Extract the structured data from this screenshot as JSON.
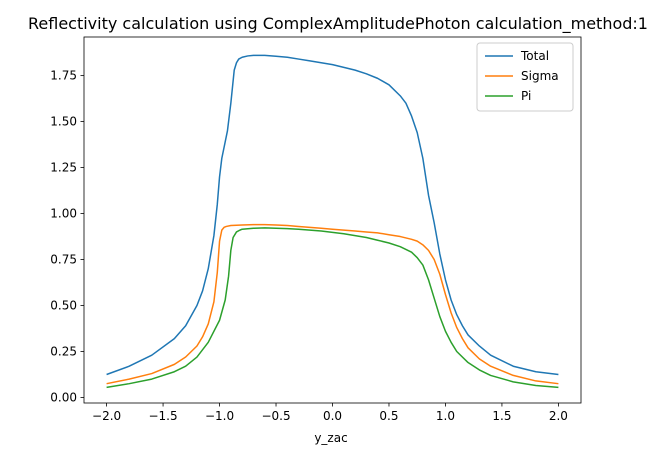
{
  "chart_data": {
    "type": "line",
    "title": "Reflectivity calculation using ComplexAmplitudePhoton calculation_method:1",
    "xlabel": "y_zac",
    "ylabel": "",
    "xlim": [
      -2.2,
      2.2
    ],
    "ylim": [
      -0.03,
      1.96
    ],
    "xticks": [
      -2.0,
      -1.5,
      -1.0,
      -0.5,
      0.0,
      0.5,
      1.0,
      1.5,
      2.0
    ],
    "xtick_labels": [
      "−2.0",
      "−1.5",
      "−1.0",
      "−0.5",
      "0.0",
      "0.5",
      "1.0",
      "1.5",
      "2.0"
    ],
    "yticks": [
      0.0,
      0.25,
      0.5,
      0.75,
      1.0,
      1.25,
      1.5,
      1.75
    ],
    "ytick_labels": [
      "0.00",
      "0.25",
      "0.50",
      "0.75",
      "1.00",
      "1.25",
      "1.50",
      "1.75"
    ],
    "grid": false,
    "legend_position": "top-right",
    "series": [
      {
        "name": "Total",
        "color": "#1f77b4",
        "x": [
          -2.0,
          -1.8,
          -1.6,
          -1.4,
          -1.3,
          -1.2,
          -1.15,
          -1.1,
          -1.05,
          -1.02,
          -1.0,
          -0.98,
          -0.96,
          -0.93,
          -0.9,
          -0.87,
          -0.85,
          -0.83,
          -0.8,
          -0.75,
          -0.7,
          -0.6,
          -0.5,
          -0.4,
          -0.3,
          -0.2,
          -0.1,
          0.0,
          0.1,
          0.2,
          0.3,
          0.4,
          0.5,
          0.6,
          0.65,
          0.7,
          0.75,
          0.8,
          0.85,
          0.9,
          0.95,
          1.0,
          1.05,
          1.1,
          1.15,
          1.2,
          1.3,
          1.4,
          1.6,
          1.8,
          2.0
        ],
        "y": [
          0.125,
          0.17,
          0.23,
          0.32,
          0.39,
          0.5,
          0.58,
          0.7,
          0.88,
          1.05,
          1.2,
          1.3,
          1.36,
          1.45,
          1.6,
          1.78,
          1.82,
          1.84,
          1.85,
          1.857,
          1.86,
          1.86,
          1.855,
          1.85,
          1.84,
          1.83,
          1.82,
          1.81,
          1.795,
          1.78,
          1.76,
          1.735,
          1.7,
          1.64,
          1.6,
          1.53,
          1.44,
          1.3,
          1.1,
          0.95,
          0.78,
          0.64,
          0.53,
          0.45,
          0.39,
          0.34,
          0.28,
          0.23,
          0.17,
          0.14,
          0.125
        ]
      },
      {
        "name": "Sigma",
        "color": "#ff7f0e",
        "x": [
          -2.0,
          -1.8,
          -1.6,
          -1.4,
          -1.3,
          -1.2,
          -1.15,
          -1.1,
          -1.05,
          -1.02,
          -1.0,
          -0.98,
          -0.96,
          -0.94,
          -0.9,
          -0.8,
          -0.7,
          -0.6,
          -0.5,
          -0.4,
          -0.3,
          -0.2,
          -0.1,
          0.0,
          0.1,
          0.2,
          0.3,
          0.4,
          0.5,
          0.6,
          0.7,
          0.75,
          0.8,
          0.85,
          0.9,
          0.95,
          1.0,
          1.05,
          1.1,
          1.15,
          1.2,
          1.3,
          1.4,
          1.6,
          1.8,
          2.0
        ],
        "y": [
          0.075,
          0.1,
          0.13,
          0.18,
          0.22,
          0.28,
          0.33,
          0.4,
          0.52,
          0.68,
          0.85,
          0.91,
          0.925,
          0.93,
          0.935,
          0.938,
          0.94,
          0.94,
          0.938,
          0.935,
          0.93,
          0.925,
          0.92,
          0.915,
          0.91,
          0.905,
          0.9,
          0.895,
          0.885,
          0.875,
          0.86,
          0.85,
          0.83,
          0.8,
          0.75,
          0.67,
          0.56,
          0.46,
          0.38,
          0.32,
          0.27,
          0.21,
          0.17,
          0.12,
          0.09,
          0.075
        ]
      },
      {
        "name": "Pi",
        "color": "#2ca02c",
        "x": [
          -2.0,
          -1.8,
          -1.6,
          -1.4,
          -1.3,
          -1.2,
          -1.1,
          -1.0,
          -0.95,
          -0.92,
          -0.9,
          -0.88,
          -0.85,
          -0.82,
          -0.8,
          -0.7,
          -0.6,
          -0.5,
          -0.4,
          -0.3,
          -0.2,
          -0.1,
          0.0,
          0.1,
          0.2,
          0.3,
          0.4,
          0.5,
          0.6,
          0.7,
          0.75,
          0.8,
          0.85,
          0.9,
          0.95,
          1.0,
          1.05,
          1.1,
          1.2,
          1.3,
          1.4,
          1.6,
          1.8,
          2.0
        ],
        "y": [
          0.055,
          0.075,
          0.1,
          0.14,
          0.17,
          0.22,
          0.3,
          0.42,
          0.53,
          0.66,
          0.8,
          0.87,
          0.9,
          0.91,
          0.915,
          0.92,
          0.922,
          0.92,
          0.918,
          0.915,
          0.91,
          0.905,
          0.898,
          0.89,
          0.88,
          0.87,
          0.855,
          0.84,
          0.82,
          0.79,
          0.76,
          0.72,
          0.64,
          0.54,
          0.44,
          0.36,
          0.3,
          0.25,
          0.19,
          0.15,
          0.12,
          0.085,
          0.065,
          0.055
        ]
      }
    ]
  }
}
